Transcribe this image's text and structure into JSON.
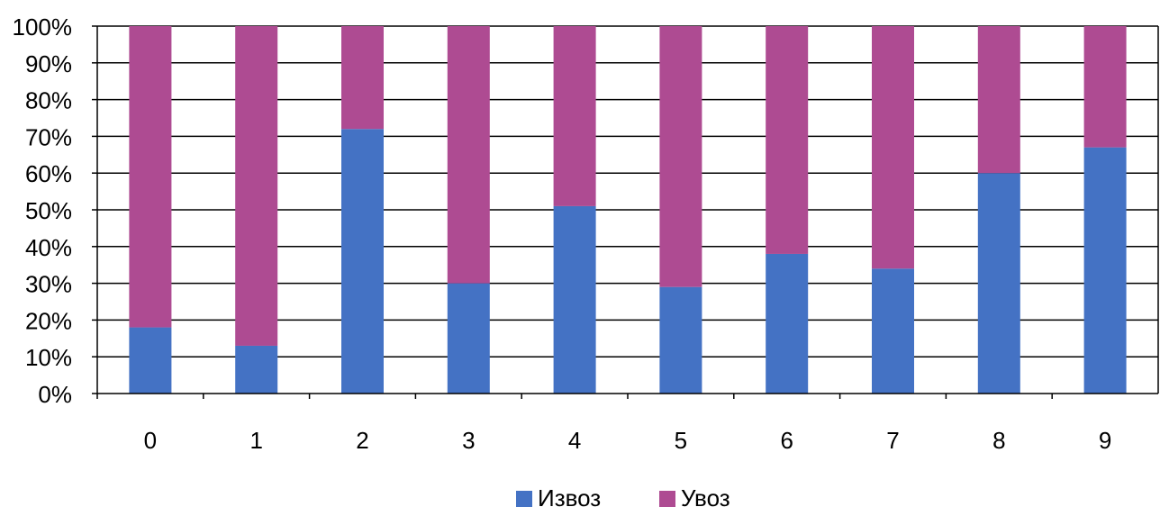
{
  "chart_data": {
    "type": "bar",
    "stacked": true,
    "normalized": true,
    "categories": [
      "0",
      "1",
      "2",
      "3",
      "4",
      "5",
      "6",
      "7",
      "8",
      "9"
    ],
    "series": [
      {
        "name": "Извоз",
        "color": "#4472C4",
        "values": [
          18,
          13,
          72,
          30,
          51,
          29,
          38,
          34,
          60,
          67
        ]
      },
      {
        "name": "Увоз",
        "color": "#AE4B92",
        "values": [
          82,
          87,
          28,
          70,
          49,
          71,
          62,
          66,
          40,
          33
        ]
      }
    ],
    "yticks": [
      "0%",
      "10%",
      "20%",
      "30%",
      "40%",
      "50%",
      "60%",
      "70%",
      "80%",
      "90%",
      "100%"
    ],
    "ylim": [
      0,
      100
    ],
    "title": "",
    "xlabel": "",
    "ylabel": "",
    "grid": "horizontal",
    "legend": "bottom-center"
  }
}
